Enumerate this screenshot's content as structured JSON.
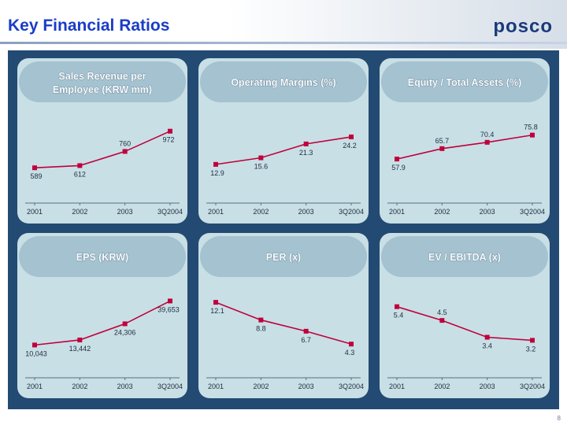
{
  "header": {
    "title": "Key Financial Ratios",
    "logo_text": "posco"
  },
  "page_number": "8",
  "colors": {
    "title": "#1a3cc8",
    "panel": "#234a72",
    "card": "#c8dfe6",
    "series": "#c0003a"
  },
  "chart_data": [
    {
      "type": "line",
      "title": "Sales Revenue per Employee (KRW mm)",
      "categories": [
        "2001",
        "2002",
        "2003",
        "3Q2004"
      ],
      "values": [
        589,
        612,
        760,
        972
      ],
      "labels": [
        "589",
        "612",
        "760",
        "972"
      ],
      "ylim": [
        500,
        1060
      ]
    },
    {
      "type": "line",
      "title": "Operating Margins (%)",
      "categories": [
        "2001",
        "2002",
        "2003",
        "3Q2004"
      ],
      "values": [
        12.9,
        15.6,
        21.3,
        24.2
      ],
      "labels": [
        "12.9",
        "15.6",
        "21.3",
        "24.2"
      ],
      "ylim": [
        8,
        30
      ]
    },
    {
      "type": "line",
      "title": "Equity / Total Assets (%)",
      "categories": [
        "2001",
        "2002",
        "2003",
        "3Q2004"
      ],
      "values": [
        57.9,
        65.7,
        70.4,
        75.8
      ],
      "labels": [
        "57.9",
        "65.7",
        "70.4",
        "75.8"
      ],
      "ylim": [
        45,
        85
      ]
    },
    {
      "type": "line",
      "title": "EPS (KRW)",
      "categories": [
        "2001",
        "2002",
        "2003",
        "3Q2004"
      ],
      "values": [
        10043,
        13442,
        24306,
        39653
      ],
      "labels": [
        "10,043",
        "13,442",
        "24,306",
        "39,653"
      ],
      "ylim": [
        6000,
        42000
      ]
    },
    {
      "type": "line",
      "title": "PER (x)",
      "categories": [
        "2001",
        "2002",
        "2003",
        "3Q2004"
      ],
      "values": [
        12.1,
        8.8,
        6.7,
        4.3
      ],
      "labels": [
        "12.1",
        "8.8",
        "6.7",
        "4.3"
      ],
      "ylim": [
        3,
        13
      ]
    },
    {
      "type": "line",
      "title": "EV / EBITDA (x)",
      "categories": [
        "2001",
        "2002",
        "2003",
        "3Q2004"
      ],
      "values": [
        5.4,
        4.5,
        3.4,
        3.2
      ],
      "labels": [
        "5.4",
        "4.5",
        "3.4",
        "3.2"
      ],
      "ylim": [
        2.5,
        6
      ]
    }
  ]
}
